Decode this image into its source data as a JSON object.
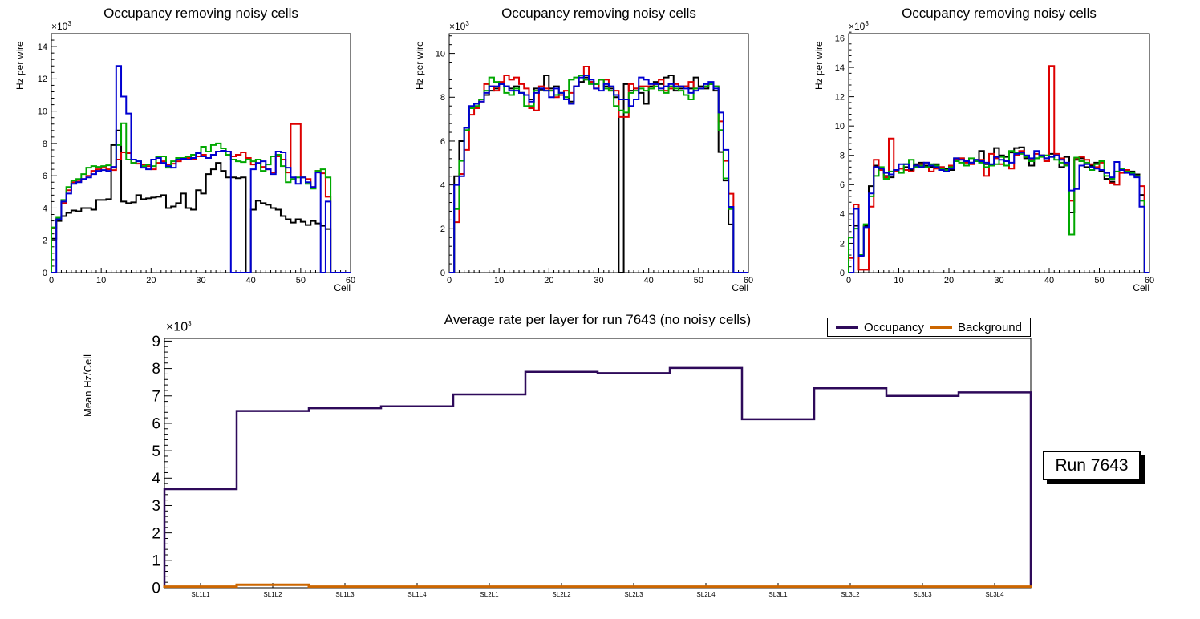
{
  "exp": {
    "prefix": "×10",
    "sup": "3"
  },
  "run_annotation": "Run 7643",
  "chart_data": [
    {
      "type": "line",
      "style": "step-histogram",
      "title": "Occupancy removing noisy cells",
      "xlabel": "Cell",
      "ylabel": "Hz per wire",
      "y_unit": "×10³ Hz",
      "xlim": [
        0,
        60
      ],
      "ylim": [
        0,
        14.8
      ],
      "yticks": [
        0,
        2,
        4,
        6,
        8,
        10,
        12,
        14
      ],
      "xticks": [
        0,
        10,
        20,
        30,
        40,
        50,
        60
      ],
      "grid": false,
      "legend_position": "none",
      "series": [
        {
          "name": "layer1-black",
          "color": "#000000",
          "values": [
            2.1,
            3.2,
            3.5,
            3.7,
            3.85,
            3.8,
            4.0,
            4.0,
            3.9,
            4.5,
            4.5,
            4.55,
            7.9,
            8.8,
            4.4,
            4.3,
            4.35,
            4.8,
            4.55,
            4.6,
            4.65,
            4.7,
            4.8,
            4.0,
            4.1,
            4.3,
            4.9,
            4.0,
            3.9,
            5.1,
            4.9,
            6.1,
            6.4,
            6.8,
            6.3,
            5.9,
            5.9,
            5.85,
            5.9,
            0,
            3.9,
            4.45,
            4.3,
            4.2,
            4.0,
            3.9,
            3.5,
            3.3,
            3.1,
            3.3,
            3.15,
            2.95,
            3.2,
            3.05,
            2.9,
            2.7,
            0,
            0,
            0,
            0
          ]
        },
        {
          "name": "layer2-red",
          "color": "#dd0000",
          "values": [
            2.75,
            3.3,
            4.3,
            5.1,
            5.6,
            5.65,
            5.8,
            6.0,
            6.3,
            6.4,
            6.5,
            6.4,
            6.35,
            7.0,
            7.45,
            7.4,
            6.8,
            6.75,
            6.7,
            6.6,
            6.4,
            6.8,
            6.9,
            6.7,
            6.75,
            6.9,
            7.0,
            7.1,
            7.0,
            7.2,
            7.3,
            7.1,
            7.25,
            7.5,
            7.55,
            7.5,
            7.2,
            7.3,
            7.45,
            7.1,
            6.7,
            7.0,
            6.55,
            6.4,
            6.2,
            7.2,
            7.0,
            6.2,
            9.2,
            9.2,
            5.9,
            5.8,
            5.3,
            6.3,
            6.15,
            4.7,
            0,
            0,
            0,
            0
          ]
        },
        {
          "name": "layer3-green",
          "color": "#00a800",
          "values": [
            2.8,
            3.4,
            4.5,
            5.3,
            5.7,
            5.8,
            6.1,
            6.5,
            6.6,
            6.55,
            6.6,
            6.65,
            6.5,
            7.9,
            9.25,
            7.0,
            6.8,
            6.9,
            6.6,
            6.7,
            6.6,
            7.2,
            7.2,
            6.5,
            6.9,
            7.1,
            7.1,
            7.2,
            7.3,
            7.4,
            7.8,
            7.5,
            7.9,
            8.0,
            7.7,
            7.3,
            7.0,
            6.9,
            6.85,
            7.0,
            6.9,
            7.0,
            6.3,
            6.7,
            7.2,
            7.3,
            6.6,
            5.6,
            5.8,
            5.9,
            5.9,
            5.5,
            5.2,
            6.3,
            6.4,
            5.9,
            0,
            0,
            0,
            0
          ]
        },
        {
          "name": "layer4-blue",
          "color": "#0000d0",
          "values": [
            0,
            3.3,
            4.4,
            4.9,
            5.5,
            5.6,
            5.8,
            5.9,
            6.1,
            6.3,
            6.35,
            6.3,
            6.55,
            12.8,
            10.9,
            9.85,
            7.0,
            6.9,
            6.5,
            6.4,
            7.0,
            7.1,
            6.8,
            6.6,
            6.5,
            7.0,
            7.05,
            7.0,
            7.1,
            7.4,
            7.2,
            7.1,
            7.3,
            7.5,
            7.55,
            7.5,
            0,
            0,
            0,
            0,
            6.4,
            6.8,
            6.9,
            6.4,
            6.1,
            7.5,
            7.45,
            6.5,
            5.9,
            5.5,
            5.9,
            5.6,
            5.3,
            6.2,
            0,
            4.4,
            0,
            0,
            0,
            0
          ]
        }
      ]
    },
    {
      "type": "line",
      "style": "step-histogram",
      "title": "Occupancy removing noisy cells",
      "xlabel": "Cell",
      "ylabel": "Hz per wire",
      "y_unit": "×10³ Hz",
      "xlim": [
        0,
        60
      ],
      "ylim": [
        0,
        10.9
      ],
      "yticks": [
        0,
        2,
        4,
        6,
        8,
        10
      ],
      "xticks": [
        0,
        10,
        20,
        30,
        40,
        50,
        60
      ],
      "grid": false,
      "legend_position": "none",
      "series": [
        {
          "name": "layer1-black",
          "color": "#000000",
          "values": [
            0,
            4.4,
            6.0,
            6.6,
            7.5,
            7.7,
            7.9,
            8.1,
            8.3,
            8.4,
            8.6,
            8.5,
            8.4,
            8.5,
            8.2,
            8.1,
            7.9,
            8.4,
            8.35,
            9.0,
            8.4,
            8.5,
            8.1,
            8.0,
            7.8,
            8.5,
            8.7,
            8.9,
            8.7,
            8.6,
            8.8,
            8.5,
            8.4,
            8.0,
            0,
            8.6,
            8.3,
            8.4,
            8.2,
            7.7,
            8.5,
            8.7,
            8.6,
            8.9,
            9.0,
            8.3,
            8.4,
            8.5,
            8.4,
            8.9,
            8.5,
            8.4,
            8.6,
            8.3,
            5.5,
            4.2,
            2.2,
            0,
            0,
            0
          ]
        },
        {
          "name": "layer2-red",
          "color": "#dd0000",
          "values": [
            0,
            2.3,
            4.5,
            5.6,
            7.2,
            7.5,
            7.8,
            8.6,
            8.5,
            8.3,
            8.7,
            9.0,
            8.8,
            8.9,
            8.6,
            8.4,
            7.5,
            7.4,
            8.5,
            8.4,
            8.3,
            8.0,
            8.1,
            8.3,
            8.2,
            8.5,
            9.0,
            9.4,
            8.7,
            8.4,
            8.8,
            8.8,
            8.3,
            8.3,
            7.1,
            7.1,
            8.6,
            8.4,
            8.5,
            8.5,
            8.4,
            8.6,
            8.8,
            8.3,
            8.4,
            8.6,
            8.5,
            8.5,
            8.7,
            8.4,
            8.4,
            8.5,
            8.6,
            8.5,
            6.9,
            5.1,
            3.6,
            0,
            0,
            0
          ]
        },
        {
          "name": "layer3-green",
          "color": "#00a800",
          "values": [
            0,
            2.9,
            5.1,
            6.5,
            7.5,
            7.6,
            7.9,
            8.3,
            8.9,
            8.7,
            8.6,
            8.2,
            8.1,
            8.4,
            8.2,
            7.6,
            7.6,
            8.3,
            8.4,
            8.3,
            8.3,
            8.1,
            8.2,
            8.0,
            8.8,
            8.9,
            9.0,
            8.8,
            8.6,
            8.6,
            8.8,
            8.4,
            8.3,
            7.6,
            7.4,
            7.3,
            8.2,
            8.3,
            8.4,
            8.3,
            8.4,
            8.5,
            8.3,
            8.2,
            8.5,
            8.4,
            8.3,
            8.1,
            7.9,
            8.4,
            8.4,
            8.5,
            8.6,
            8.5,
            6.5,
            4.3,
            2.9,
            0,
            0,
            0
          ]
        },
        {
          "name": "layer4-blue",
          "color": "#0000d0",
          "values": [
            0,
            4.0,
            4.4,
            6.6,
            7.6,
            7.7,
            7.8,
            8.2,
            8.5,
            8.5,
            8.6,
            8.5,
            8.3,
            8.3,
            8.2,
            8.1,
            7.8,
            8.2,
            8.4,
            8.3,
            8.0,
            8.4,
            8.2,
            7.9,
            7.7,
            8.5,
            8.9,
            9.0,
            8.8,
            8.4,
            8.3,
            8.6,
            8.5,
            8.1,
            7.9,
            7.9,
            7.6,
            7.9,
            8.9,
            8.8,
            8.6,
            8.6,
            8.4,
            8.5,
            8.6,
            8.5,
            8.5,
            8.4,
            8.2,
            8.3,
            8.4,
            8.6,
            8.7,
            8.4,
            7.3,
            5.6,
            3.0,
            0,
            0,
            0
          ]
        }
      ]
    },
    {
      "type": "line",
      "style": "step-histogram",
      "title": "Occupancy removing noisy cells",
      "xlabel": "Cell",
      "ylabel": "Hz per wire",
      "y_unit": "×10³ Hz",
      "xlim": [
        0,
        60
      ],
      "ylim": [
        0,
        16.3
      ],
      "yticks": [
        0,
        2,
        4,
        6,
        8,
        10,
        12,
        14,
        16
      ],
      "xticks": [
        0,
        10,
        20,
        30,
        40,
        50,
        60
      ],
      "grid": false,
      "legend_position": "none",
      "series": [
        {
          "name": "layer1-black",
          "color": "#000000",
          "values": [
            2.4,
            3.2,
            1.2,
            3.2,
            5.9,
            7.3,
            7.0,
            6.6,
            6.5,
            6.9,
            7.1,
            7.2,
            7.0,
            7.4,
            7.5,
            7.3,
            7.2,
            7.4,
            7.2,
            7.1,
            7.0,
            7.8,
            7.8,
            7.6,
            7.5,
            7.7,
            8.3,
            7.4,
            7.3,
            8.5,
            8.0,
            7.9,
            8.2,
            8.5,
            8.55,
            7.8,
            7.3,
            7.8,
            8.0,
            7.8,
            8.1,
            8.0,
            7.2,
            7.9,
            4.1,
            7.7,
            7.8,
            7.2,
            7.3,
            7.5,
            6.9,
            6.4,
            6.2,
            6.0,
            7.1,
            7.0,
            6.9,
            6.7,
            5.3,
            0
          ]
        },
        {
          "name": "layer2-red",
          "color": "#dd0000",
          "values": [
            1.0,
            4.65,
            0.2,
            0.2,
            4.5,
            7.7,
            7.0,
            6.5,
            9.15,
            6.9,
            7.1,
            7.0,
            6.9,
            7.3,
            7.4,
            7.5,
            6.9,
            7.1,
            7.2,
            7.0,
            7.3,
            7.7,
            7.8,
            7.5,
            7.4,
            7.6,
            7.7,
            6.6,
            8.1,
            7.8,
            7.4,
            7.3,
            7.1,
            8.0,
            8.3,
            7.9,
            7.7,
            8.1,
            8.0,
            7.6,
            14.1,
            8.1,
            7.8,
            7.4,
            4.9,
            7.8,
            7.9,
            7.7,
            7.4,
            7.2,
            7.5,
            6.8,
            6.1,
            6.0,
            6.8,
            7.0,
            6.8,
            6.6,
            5.9,
            0
          ]
        },
        {
          "name": "layer3-green",
          "color": "#00a800",
          "values": [
            2.4,
            3.0,
            1.2,
            3.3,
            5.2,
            6.6,
            7.2,
            6.4,
            6.9,
            7.0,
            6.8,
            7.4,
            7.7,
            7.2,
            7.3,
            7.2,
            7.4,
            7.3,
            7.1,
            7.0,
            7.2,
            7.6,
            7.5,
            7.3,
            7.8,
            7.6,
            7.5,
            7.2,
            7.3,
            7.4,
            7.9,
            7.3,
            8.3,
            8.2,
            8.1,
            7.9,
            7.6,
            7.8,
            7.9,
            8.0,
            7.9,
            7.7,
            7.5,
            7.3,
            2.6,
            7.85,
            7.6,
            7.5,
            7.0,
            7.4,
            7.6,
            6.6,
            6.4,
            6.9,
            7.1,
            6.9,
            6.8,
            6.6,
            4.9,
            0
          ]
        },
        {
          "name": "layer4-blue",
          "color": "#0000d0",
          "values": [
            0,
            4.35,
            1.15,
            3.1,
            5.4,
            7.2,
            7.1,
            6.8,
            6.7,
            7.0,
            7.4,
            7.4,
            7.1,
            7.3,
            7.2,
            7.5,
            7.3,
            7.2,
            7.0,
            6.9,
            7.1,
            7.8,
            7.7,
            7.6,
            7.5,
            7.7,
            7.6,
            7.5,
            7.4,
            7.9,
            7.7,
            7.6,
            7.5,
            8.1,
            8.2,
            8.0,
            7.8,
            8.3,
            8.0,
            7.8,
            7.9,
            8.0,
            7.7,
            7.5,
            5.6,
            5.7,
            7.3,
            7.4,
            7.2,
            7.1,
            7.0,
            6.8,
            6.5,
            7.55,
            7.0,
            6.8,
            6.7,
            6.5,
            4.5,
            0
          ]
        }
      ]
    },
    {
      "type": "line",
      "style": "step-histogram",
      "title": "Average rate per layer for run 7643 (no noisy cells)",
      "xlabel": "",
      "ylabel": "Mean Hz/Cell",
      "y_unit": "×10³ Hz",
      "categories": [
        "SL1L1",
        "SL1L2",
        "SL1L3",
        "SL1L4",
        "SL2L1",
        "SL2L2",
        "SL2L3",
        "SL2L4",
        "SL3L1",
        "SL3L2",
        "SL3L3",
        "SL3L4"
      ],
      "ylim": [
        0,
        9.1
      ],
      "yticks": [
        0,
        1,
        2,
        3,
        4,
        5,
        6,
        7,
        8,
        9
      ],
      "grid": false,
      "legend_position": "top-right",
      "legend": [
        {
          "label": "Occupancy",
          "color": "#2e0a5a"
        },
        {
          "label": "Background",
          "color": "#cc6600"
        }
      ],
      "series": [
        {
          "name": "Occupancy",
          "color": "#2e0a5a",
          "width": 2.5,
          "values": [
            3.6,
            6.45,
            6.55,
            6.62,
            7.05,
            7.88,
            7.83,
            8.02,
            6.15,
            7.28,
            7.0,
            7.13
          ]
        },
        {
          "name": "Background",
          "color": "#cc6600",
          "width": 3,
          "values": [
            0.04,
            0.11,
            0.04,
            0.04,
            0.04,
            0.04,
            0.04,
            0.04,
            0.04,
            0.04,
            0.04,
            0.04
          ]
        }
      ]
    }
  ]
}
